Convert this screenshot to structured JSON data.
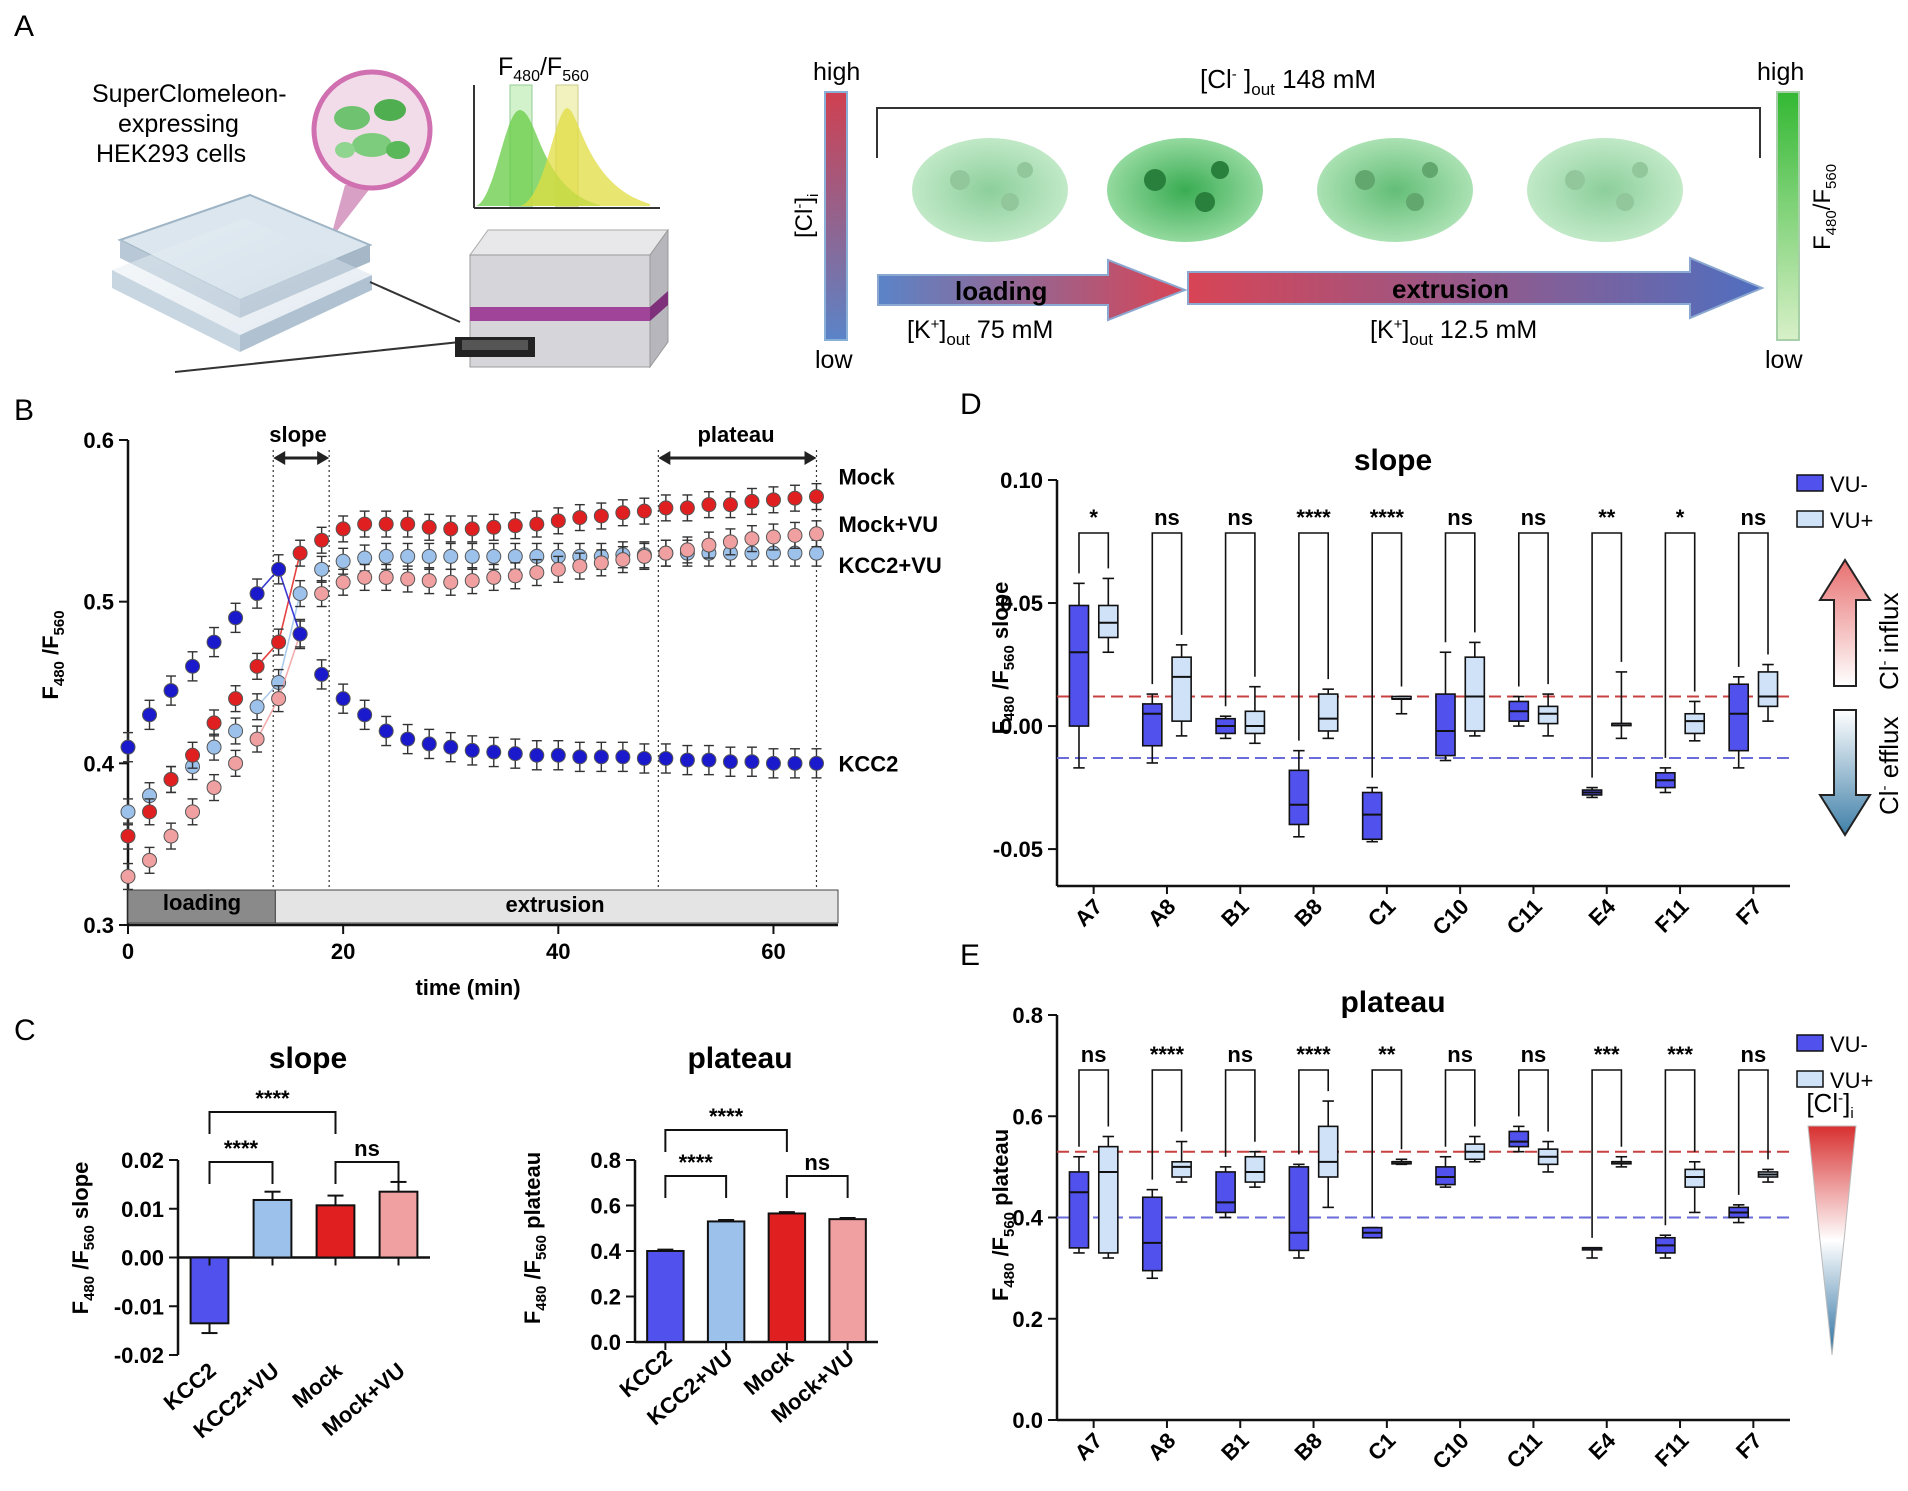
{
  "panel_letters": {
    "a": "A",
    "b": "B",
    "c": "C",
    "d": "D",
    "e": "E"
  },
  "panel_a": {
    "cells_label_1": "SuperClomeleon-",
    "cells_label_2": "expressing",
    "cells_label_3": "HEK293 cells",
    "ratio_label": "F480/F560",
    "cl_axis": {
      "high": "high",
      "low": "low",
      "label": "[Cl-]i"
    },
    "ratio_axis": {
      "high": "high",
      "low": "low",
      "label": "F480/F560"
    },
    "cl_out": "[Cl- ]out 148 mM",
    "loading_label": "loading",
    "extrusion_label": "extrusion",
    "k_loading": "[K+]out 75 mM",
    "k_extrusion": "[K+]out 12.5 mM"
  },
  "colors": {
    "kcc2": "#1a1acc",
    "kcc2vu": "#9cc2ec",
    "mock": "#e02020",
    "mockvu": "#f0a0a0",
    "vuminus": "#5151ee",
    "vuplus": "#cfe2f8",
    "red_line": "#c84040",
    "blue_line": "#6a6ad8"
  },
  "chart_data": [
    {
      "id": "B",
      "type": "scatter",
      "title": "",
      "xlabel": "time (min)",
      "ylabel": "F480/F560",
      "xlim": [
        0,
        66
      ],
      "ylim": [
        0.3,
        0.6
      ],
      "xticks": [
        "0",
        "20",
        "40",
        "60"
      ],
      "yticks": [
        "0.3",
        "0.4",
        "0.5",
        "0.6"
      ],
      "annotations": {
        "slope": "slope",
        "plateau": "plateau",
        "loading": "loading",
        "extrusion": "extrusion"
      },
      "x": [
        0,
        2,
        4,
        6,
        8,
        10,
        12,
        14,
        16,
        18,
        20,
        22,
        24,
        26,
        28,
        30,
        32,
        34,
        36,
        38,
        40,
        42,
        44,
        46,
        48,
        50,
        52,
        54,
        56,
        58,
        60,
        62,
        64
      ],
      "series": [
        {
          "name": "KCC2",
          "values": [
            0.41,
            0.43,
            0.445,
            0.46,
            0.475,
            0.49,
            0.505,
            0.52,
            0.48,
            0.455,
            0.44,
            0.43,
            0.42,
            0.415,
            0.412,
            0.41,
            0.408,
            0.407,
            0.406,
            0.405,
            0.405,
            0.404,
            0.404,
            0.404,
            0.403,
            0.403,
            0.402,
            0.402,
            0.401,
            0.401,
            0.4,
            0.4,
            0.4
          ]
        },
        {
          "name": "KCC2+VU",
          "values": [
            0.37,
            0.38,
            0.39,
            0.398,
            0.41,
            0.42,
            0.435,
            0.45,
            0.505,
            0.52,
            0.525,
            0.527,
            0.528,
            0.528,
            0.528,
            0.528,
            0.528,
            0.528,
            0.528,
            0.528,
            0.528,
            0.528,
            0.528,
            0.529,
            0.529,
            0.53,
            0.53,
            0.53,
            0.53,
            0.53,
            0.53,
            0.53,
            0.53
          ]
        },
        {
          "name": "Mock",
          "values": [
            0.355,
            0.37,
            0.39,
            0.405,
            0.425,
            0.44,
            0.46,
            0.475,
            0.53,
            0.538,
            0.545,
            0.548,
            0.548,
            0.548,
            0.546,
            0.545,
            0.545,
            0.546,
            0.547,
            0.548,
            0.55,
            0.552,
            0.553,
            0.555,
            0.556,
            0.558,
            0.558,
            0.56,
            0.56,
            0.562,
            0.563,
            0.564,
            0.565
          ]
        },
        {
          "name": "Mock+VU",
          "values": [
            0.33,
            0.34,
            0.355,
            0.37,
            0.385,
            0.4,
            0.415,
            0.44,
            0.48,
            0.505,
            0.512,
            0.515,
            0.515,
            0.514,
            0.513,
            0.512,
            0.513,
            0.515,
            0.516,
            0.518,
            0.52,
            0.522,
            0.524,
            0.526,
            0.528,
            0.53,
            0.532,
            0.535,
            0.537,
            0.539,
            0.54,
            0.541,
            0.542
          ]
        }
      ]
    },
    {
      "id": "C-slope",
      "type": "bar",
      "title": "slope",
      "ylabel": "F480/F560 slope",
      "categories": [
        "KCC2",
        "KCC2+VU",
        "Mock",
        "Mock+VU"
      ],
      "values": [
        -0.0135,
        0.0118,
        0.0107,
        0.0135
      ],
      "errors": [
        0.002,
        0.0017,
        0.002,
        0.002
      ],
      "ylim": [
        -0.02,
        0.02
      ],
      "yticks": [
        "-0.02",
        "-0.01",
        "0.00",
        "0.01",
        "0.02"
      ],
      "significance": [
        "****",
        "****",
        "ns"
      ]
    },
    {
      "id": "C-plateau",
      "type": "bar",
      "title": "plateau",
      "ylabel": "F480/F560 plateau",
      "categories": [
        "KCC2",
        "KCC2+VU",
        "Mock",
        "Mock+VU"
      ],
      "values": [
        0.4,
        0.53,
        0.565,
        0.54
      ],
      "errors": [
        0.006,
        0.006,
        0.006,
        0.005
      ],
      "ylim": [
        0,
        0.8
      ],
      "yticks": [
        "0.0",
        "0.2",
        "0.4",
        "0.6",
        "0.8"
      ],
      "significance": [
        "****",
        "****",
        "ns"
      ]
    },
    {
      "id": "D",
      "type": "box",
      "title": "slope",
      "ylabel": "F480/F560 slope",
      "ylim": [
        -0.065,
        0.1
      ],
      "yticks": [
        "-0.05",
        "0.00",
        "0.05",
        "0.10"
      ],
      "categories": [
        "A7",
        "A8",
        "B1",
        "B8",
        "C1",
        "C10",
        "C11",
        "E4",
        "F11",
        "F7"
      ],
      "legend": [
        "VU-",
        "VU+"
      ],
      "significance": [
        "*",
        "ns",
        "ns",
        "****",
        "****",
        "ns",
        "ns",
        "**",
        "*",
        "ns"
      ],
      "reference_lines": [
        0.012,
        -0.013
      ],
      "side_labels": {
        "influx": "Cl- influx",
        "efflux": "Cl- efflux"
      },
      "series": [
        {
          "name": "VU-",
          "boxes": [
            [
              -0.017,
              0.0,
              0.03,
              0.049,
              0.058
            ],
            [
              -0.015,
              -0.008,
              0.005,
              0.009,
              0.013
            ],
            [
              -0.005,
              -0.003,
              0.0,
              0.003,
              0.004
            ],
            [
              -0.045,
              -0.04,
              -0.032,
              -0.018,
              -0.01
            ],
            [
              -0.047,
              -0.046,
              -0.036,
              -0.027,
              -0.025
            ],
            [
              -0.014,
              -0.012,
              -0.002,
              0.013,
              0.03
            ],
            [
              0.0,
              0.002,
              0.006,
              0.01,
              0.012
            ],
            [
              -0.029,
              -0.028,
              -0.027,
              -0.026,
              -0.025
            ],
            [
              -0.027,
              -0.025,
              -0.022,
              -0.019,
              -0.017
            ],
            [
              -0.017,
              -0.01,
              0.005,
              0.017,
              0.02
            ]
          ]
        },
        {
          "name": "VU+",
          "boxes": [
            [
              0.03,
              0.036,
              0.042,
              0.049,
              0.06
            ],
            [
              -0.004,
              0.002,
              0.02,
              0.028,
              0.033
            ],
            [
              -0.007,
              -0.003,
              0.0,
              0.006,
              0.016
            ],
            [
              -0.005,
              -0.002,
              0.003,
              0.013,
              0.015
            ],
            [
              0.005,
              0.011,
              0.011,
              0.012,
              0.012
            ],
            [
              -0.004,
              -0.002,
              0.012,
              0.028,
              0.034
            ],
            [
              -0.004,
              0.001,
              0.005,
              0.008,
              0.013
            ],
            [
              -0.005,
              0.001,
              0.001,
              0.001,
              0.022
            ],
            [
              -0.006,
              -0.003,
              0.002,
              0.005,
              0.01
            ],
            [
              0.002,
              0.008,
              0.012,
              0.022,
              0.025
            ]
          ]
        }
      ]
    },
    {
      "id": "E",
      "type": "box",
      "title": "plateau",
      "ylabel": "F480/F560 plateau",
      "ylim": [
        0,
        0.8
      ],
      "yticks": [
        "0.0",
        "0.2",
        "0.4",
        "0.6",
        "0.8"
      ],
      "categories": [
        "A7",
        "A8",
        "B1",
        "B8",
        "C1",
        "C10",
        "C11",
        "E4",
        "F11",
        "F7"
      ],
      "legend": [
        "VU-",
        "VU+"
      ],
      "significance": [
        "ns",
        "****",
        "ns",
        "****",
        "**",
        "ns",
        "ns",
        "***",
        "***",
        "ns"
      ],
      "reference_lines": [
        0.53,
        0.4
      ],
      "side_labels": {
        "cl": "[Cl-]i"
      },
      "series": [
        {
          "name": "VU-",
          "boxes": [
            [
              0.33,
              0.34,
              0.45,
              0.49,
              0.52
            ],
            [
              0.28,
              0.295,
              0.35,
              0.44,
              0.455
            ],
            [
              0.4,
              0.41,
              0.43,
              0.49,
              0.5
            ],
            [
              0.32,
              0.335,
              0.37,
              0.5,
              0.505
            ],
            [
              0.36,
              0.36,
              0.37,
              0.38,
              0.38
            ],
            [
              0.46,
              0.465,
              0.48,
              0.5,
              0.52
            ],
            [
              0.53,
              0.54,
              0.55,
              0.57,
              0.58
            ],
            [
              0.32,
              0.34,
              0.34,
              0.34,
              0.34
            ],
            [
              0.32,
              0.33,
              0.345,
              0.36,
              0.365
            ],
            [
              0.39,
              0.4,
              0.41,
              0.42,
              0.425
            ]
          ]
        },
        {
          "name": "VU+",
          "boxes": [
            [
              0.32,
              0.33,
              0.49,
              0.54,
              0.56
            ],
            [
              0.47,
              0.48,
              0.5,
              0.51,
              0.55
            ],
            [
              0.46,
              0.47,
              0.49,
              0.52,
              0.53
            ],
            [
              0.42,
              0.48,
              0.51,
              0.58,
              0.63
            ],
            [
              0.505,
              0.51,
              0.51,
              0.51,
              0.515
            ],
            [
              0.51,
              0.515,
              0.53,
              0.545,
              0.56
            ],
            [
              0.49,
              0.505,
              0.52,
              0.535,
              0.55
            ],
            [
              0.5,
              0.51,
              0.51,
              0.51,
              0.52
            ],
            [
              0.41,
              0.46,
              0.48,
              0.495,
              0.51
            ],
            [
              0.47,
              0.48,
              0.485,
              0.49,
              0.495
            ]
          ]
        }
      ]
    }
  ]
}
